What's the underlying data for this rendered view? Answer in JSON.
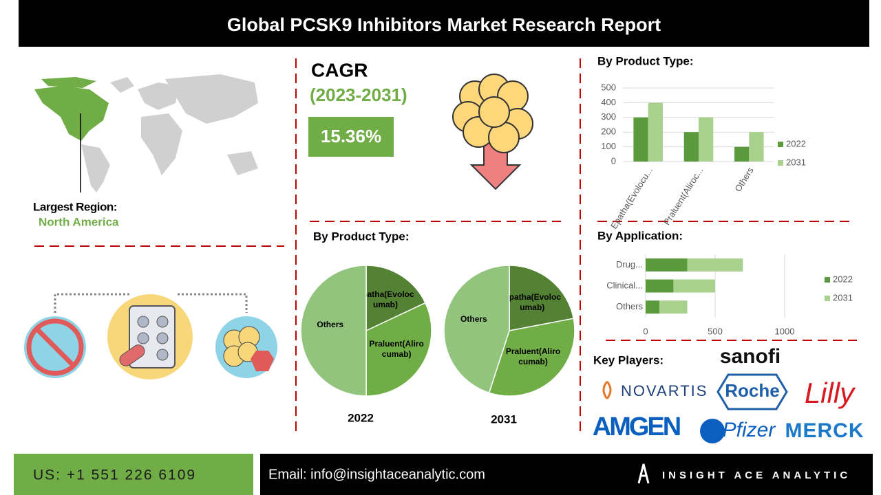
{
  "header": {
    "title": "Global PCSK9 Inhibitors Market Research Report"
  },
  "cagr": {
    "label": "CAGR",
    "period": "(2023-2031)",
    "value": "15.36%"
  },
  "region": {
    "label": "Largest Region:",
    "value": "North America"
  },
  "pie_section_title": "By Product Type:",
  "key_players": {
    "title": "Key Players:",
    "names": [
      "sanofi",
      "NOVARTIS",
      "Roche",
      "Lilly",
      "AMGEN",
      "Pfizer",
      "MERCK"
    ]
  },
  "footer": {
    "phone": "US: +1 551 226 6109",
    "email": "Email: info@insightaceanalytic.com",
    "brand": "INSIGHT ACE ANALYTIC"
  },
  "chart_data": [
    {
      "type": "bar",
      "title": "By Product Type:",
      "categories": [
        "Epatha(Evolocu...",
        "Praluent(Aliroc...",
        "Others"
      ],
      "series": [
        {
          "name": "2022",
          "color": "#5b9a3c",
          "values": [
            300,
            200,
            100
          ]
        },
        {
          "name": "2031",
          "color": "#a9d18e",
          "values": [
            400,
            300,
            200
          ]
        }
      ],
      "ylim": [
        0,
        500
      ],
      "yticks": [
        0,
        100,
        200,
        300,
        400,
        500
      ],
      "grid": true
    },
    {
      "type": "stacked_hbar",
      "title": "By Application:",
      "categories": [
        "Drug...",
        "Clinical...",
        "Others"
      ],
      "series": [
        {
          "name": "2022",
          "color": "#5b9a3c",
          "values": [
            300,
            200,
            100
          ]
        },
        {
          "name": "2031",
          "color": "#a9d18e",
          "values": [
            400,
            300,
            200
          ]
        }
      ],
      "xlim": [
        0,
        1000
      ],
      "xticks": [
        0,
        500,
        1000
      ],
      "grid": true
    },
    {
      "type": "pie",
      "title": "2022",
      "categories": [
        "Epatha(Evolocumab)",
        "Praluent(Alirocumab)",
        "Others"
      ],
      "values": [
        18,
        32,
        50
      ],
      "colors": [
        "#548235",
        "#70ad47",
        "#93c47d"
      ]
    },
    {
      "type": "pie",
      "title": "2031",
      "categories": [
        "Epatha(Evolocumab)",
        "Praluent(Alirocumab)",
        "Others"
      ],
      "values": [
        22,
        33,
        45
      ],
      "colors": [
        "#548235",
        "#70ad47",
        "#93c47d"
      ]
    }
  ]
}
